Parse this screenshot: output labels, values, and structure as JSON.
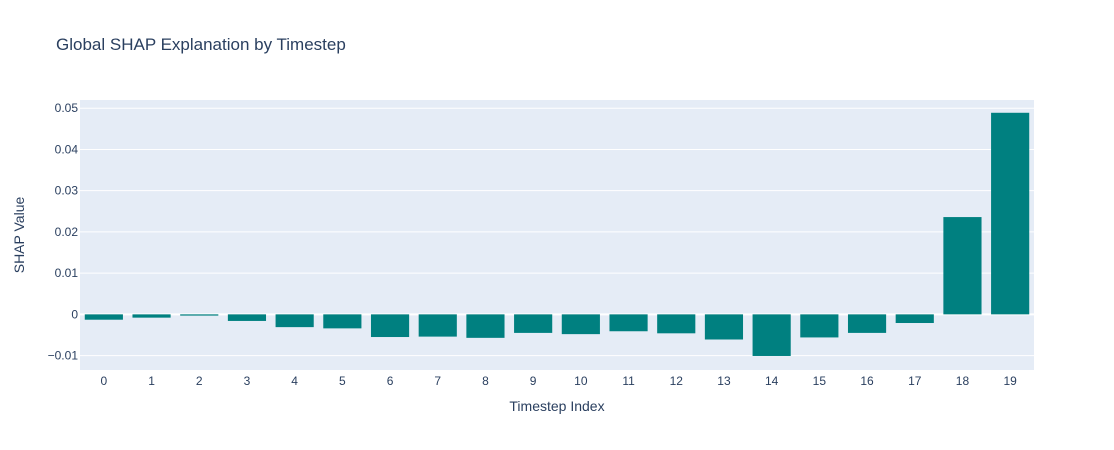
{
  "chart_data": {
    "type": "bar",
    "title": "Global SHAP Explanation by Timestep",
    "xlabel": "Timestep Index",
    "ylabel": "SHAP Value",
    "categories": [
      "0",
      "1",
      "2",
      "3",
      "4",
      "5",
      "6",
      "7",
      "8",
      "9",
      "10",
      "11",
      "12",
      "13",
      "14",
      "15",
      "16",
      "17",
      "18",
      "19"
    ],
    "values": [
      -0.0013,
      -0.0008,
      -0.0003,
      -0.0016,
      -0.0031,
      -0.0034,
      -0.0055,
      -0.0054,
      -0.0057,
      -0.0045,
      -0.0048,
      -0.0041,
      -0.0046,
      -0.0061,
      -0.0101,
      -0.0056,
      -0.0045,
      -0.0021,
      0.0236,
      0.0489
    ],
    "ylim": [
      -0.0135,
      0.052
    ],
    "yticks": [
      -0.01,
      0,
      0.01,
      0.02,
      0.03,
      0.04,
      0.05
    ],
    "ytick_labels": [
      "−0.01",
      "0",
      "0.01",
      "0.02",
      "0.03",
      "0.04",
      "0.05"
    ],
    "bar_color": "#008080",
    "plot_background": "#e5ecf6",
    "grid": true
  }
}
